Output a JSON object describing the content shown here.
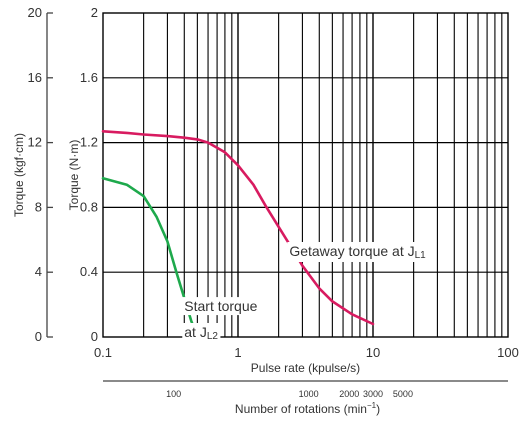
{
  "chart_data": {
    "type": "line",
    "x_scale": "log",
    "xlim": [
      0.1,
      100
    ],
    "ylim": [
      0,
      2
    ],
    "grid": true,
    "x_ticks": [
      "0.1",
      "1",
      "10",
      "100"
    ],
    "y_ticks": [
      "0",
      "0.4",
      "0.8",
      "1.2",
      "1.6",
      "2"
    ],
    "xlabel": "Pulse rate (kpulse/s)",
    "ylabel": "Torque (N·m)",
    "secondary_y": {
      "label": "Torque (kgf·cm)",
      "ticks": [
        "0",
        "4",
        "8",
        "12",
        "16",
        "20"
      ]
    },
    "secondary_x": {
      "label": "Number of rotations (min",
      "label_sup": "−1",
      "label_close": ")",
      "ticks": [
        {
          "label": "100",
          "value": 0.3333
        },
        {
          "label": "1000",
          "value": 3.333
        },
        {
          "label": "2000",
          "value": 6.667
        },
        {
          "label": "3000",
          "value": 10
        },
        {
          "label": "5000",
          "value": 16.667
        }
      ]
    },
    "series": [
      {
        "color": "#d81b60",
        "x": [
          0.1,
          0.15,
          0.2,
          0.3,
          0.4,
          0.5,
          0.6,
          0.8,
          1.0,
          1.3,
          1.6,
          2.0,
          2.5,
          3.0,
          4.0,
          5.0,
          7.0,
          10.0
        ],
        "y": [
          1.27,
          1.26,
          1.25,
          1.24,
          1.23,
          1.22,
          1.2,
          1.14,
          1.06,
          0.94,
          0.81,
          0.68,
          0.55,
          0.44,
          0.3,
          0.22,
          0.14,
          0.08
        ]
      },
      {
        "color": "#1ea94c",
        "x": [
          0.1,
          0.15,
          0.2,
          0.25,
          0.3,
          0.35,
          0.4,
          0.45,
          0.5
        ],
        "y": [
          0.98,
          0.94,
          0.87,
          0.74,
          0.59,
          0.4,
          0.24,
          0.1,
          0.0
        ]
      }
    ],
    "annotations": [
      {
        "id": "getaway",
        "text": "Getaway torque at J",
        "sub": "L1",
        "x": 2.4,
        "y": 0.5
      },
      {
        "id": "start1",
        "text": "Start torque",
        "sub": "",
        "x": 0.4,
        "y": 0.16
      },
      {
        "id": "start2",
        "text": "at J",
        "sub": "L2",
        "x": 0.4,
        "y": 0.0
      }
    ]
  }
}
